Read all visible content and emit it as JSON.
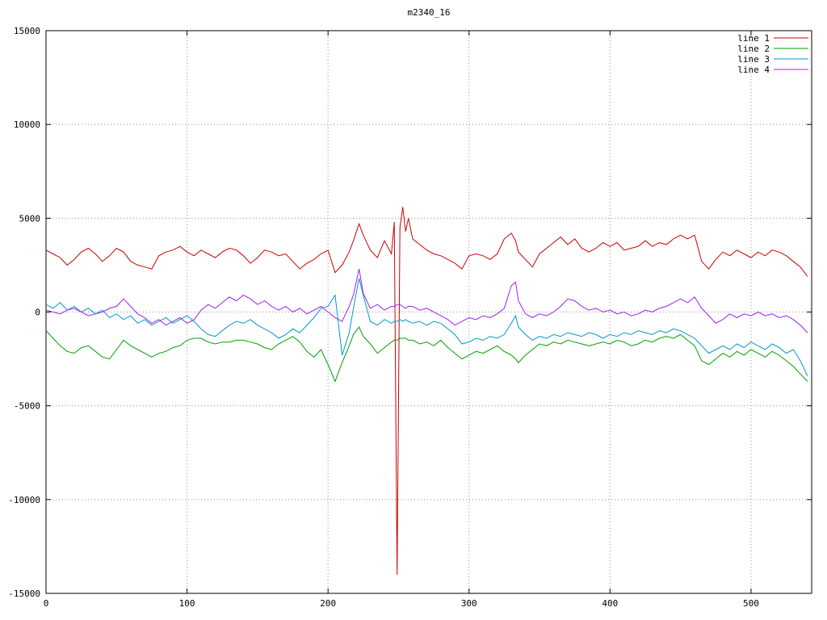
{
  "chart_data": {
    "type": "line",
    "title": "m2340_16",
    "xlabel": "",
    "ylabel": "",
    "xlim": [
      0,
      543
    ],
    "ylim": [
      -15000,
      15000
    ],
    "x_ticks": [
      0,
      100,
      200,
      300,
      400,
      500
    ],
    "y_ticks": [
      -15000,
      -10000,
      -5000,
      0,
      5000,
      10000,
      15000
    ],
    "grid": true,
    "grid_style": "dotted",
    "legend_position": "top-right",
    "colors": {
      "border": "#000000",
      "grid": "#909090",
      "text": "#000000",
      "background": "#ffffff"
    },
    "x": [
      0,
      5,
      10,
      15,
      20,
      25,
      30,
      35,
      40,
      45,
      50,
      55,
      60,
      65,
      70,
      75,
      80,
      85,
      90,
      95,
      100,
      105,
      110,
      115,
      120,
      125,
      130,
      135,
      140,
      145,
      150,
      155,
      160,
      165,
      170,
      175,
      180,
      185,
      190,
      195,
      200,
      205,
      210,
      215,
      218,
      222,
      225,
      230,
      235,
      240,
      245,
      247,
      249,
      251,
      253,
      255,
      257,
      260,
      265,
      270,
      275,
      280,
      285,
      290,
      295,
      300,
      305,
      310,
      315,
      320,
      325,
      330,
      333,
      335,
      340,
      345,
      350,
      355,
      360,
      365,
      370,
      375,
      380,
      385,
      390,
      395,
      400,
      405,
      410,
      415,
      420,
      425,
      430,
      435,
      440,
      445,
      450,
      455,
      460,
      465,
      470,
      475,
      480,
      485,
      490,
      495,
      500,
      505,
      510,
      515,
      520,
      525,
      530,
      535,
      540
    ],
    "series": [
      {
        "name": "line 1",
        "color": "#cc0000",
        "values": [
          3300,
          3100,
          2900,
          2500,
          2800,
          3200,
          3400,
          3100,
          2700,
          3000,
          3400,
          3200,
          2700,
          2500,
          2400,
          2300,
          3000,
          3200,
          3300,
          3500,
          3200,
          3000,
          3300,
          3100,
          2900,
          3200,
          3400,
          3300,
          3000,
          2600,
          2900,
          3300,
          3200,
          3000,
          3100,
          2700,
          2300,
          2600,
          2800,
          3100,
          3300,
          2100,
          2500,
          3200,
          3800,
          4700,
          4100,
          3300,
          2900,
          3800,
          3100,
          4800,
          -14000,
          4500,
          5600,
          4300,
          5000,
          3900,
          3600,
          3300,
          3100,
          3000,
          2800,
          2600,
          2300,
          3000,
          3100,
          3000,
          2800,
          3100,
          3900,
          4200,
          3800,
          3200,
          2800,
          2400,
          3100,
          3400,
          3700,
          4000,
          3600,
          3900,
          3400,
          3200,
          3400,
          3700,
          3500,
          3700,
          3300,
          3400,
          3500,
          3800,
          3500,
          3700,
          3600,
          3900,
          4100,
          3900,
          4100,
          2700,
          2300,
          2800,
          3200,
          3000,
          3300,
          3100,
          2900,
          3200,
          3000,
          3300,
          3200,
          3000,
          2700,
          2400,
          1900
        ]
      },
      {
        "name": "line 2",
        "color": "#00a000",
        "values": [
          -1000,
          -1400,
          -1800,
          -2100,
          -2200,
          -1900,
          -1800,
          -2100,
          -2400,
          -2500,
          -2000,
          -1500,
          -1800,
          -2000,
          -2200,
          -2400,
          -2200,
          -2100,
          -1900,
          -1800,
          -1500,
          -1400,
          -1400,
          -1600,
          -1700,
          -1600,
          -1600,
          -1500,
          -1500,
          -1600,
          -1700,
          -1900,
          -2000,
          -1700,
          -1500,
          -1300,
          -1600,
          -2100,
          -2400,
          -2000,
          -2800,
          -3700,
          -2700,
          -1800,
          -1200,
          -800,
          -1300,
          -1700,
          -2200,
          -1900,
          -1600,
          -1500,
          -1500,
          -1400,
          -1400,
          -1400,
          -1500,
          -1500,
          -1700,
          -1600,
          -1800,
          -1500,
          -1900,
          -2200,
          -2500,
          -2300,
          -2100,
          -2200,
          -2000,
          -1800,
          -2100,
          -2300,
          -2500,
          -2700,
          -2300,
          -2000,
          -1700,
          -1800,
          -1600,
          -1700,
          -1500,
          -1600,
          -1700,
          -1800,
          -1700,
          -1600,
          -1700,
          -1500,
          -1600,
          -1800,
          -1700,
          -1500,
          -1600,
          -1400,
          -1300,
          -1400,
          -1200,
          -1500,
          -1800,
          -2600,
          -2800,
          -2500,
          -2200,
          -2400,
          -2100,
          -2300,
          -2000,
          -2200,
          -2400,
          -2100,
          -2300,
          -2600,
          -2900,
          -3300,
          -3700
        ]
      },
      {
        "name": "line 3",
        "color": "#0099cc",
        "values": [
          400,
          200,
          500,
          100,
          300,
          0,
          200,
          -100,
          100,
          -300,
          -100,
          -400,
          -200,
          -600,
          -400,
          -700,
          -500,
          -300,
          -600,
          -400,
          -200,
          -500,
          -900,
          -1200,
          -1300,
          -1000,
          -700,
          -500,
          -600,
          -400,
          -700,
          -900,
          -1100,
          -1400,
          -1200,
          -900,
          -1100,
          -700,
          -300,
          200,
          300,
          900,
          -2300,
          -1100,
          200,
          1800,
          900,
          -500,
          -700,
          -400,
          -600,
          -500,
          -500,
          -400,
          -500,
          -400,
          -500,
          -600,
          -500,
          -700,
          -500,
          -600,
          -900,
          -1200,
          -1700,
          -1600,
          -1400,
          -1500,
          -1300,
          -1400,
          -1200,
          -600,
          -200,
          -800,
          -1200,
          -1500,
          -1300,
          -1400,
          -1200,
          -1300,
          -1100,
          -1200,
          -1300,
          -1100,
          -1200,
          -1400,
          -1200,
          -1300,
          -1100,
          -1200,
          -1000,
          -1100,
          -1200,
          -1000,
          -1100,
          -900,
          -1000,
          -1200,
          -1400,
          -1800,
          -2200,
          -2000,
          -1800,
          -2000,
          -1700,
          -1900,
          -1600,
          -1800,
          -2000,
          -1700,
          -1900,
          -2200,
          -2000,
          -2600,
          -3400
        ]
      },
      {
        "name": "line 4",
        "color": "#a020f0",
        "values": [
          100,
          0,
          -100,
          100,
          200,
          0,
          -200,
          -100,
          0,
          200,
          300,
          700,
          300,
          -100,
          -300,
          -600,
          -400,
          -700,
          -500,
          -300,
          -600,
          -400,
          100,
          400,
          200,
          500,
          800,
          600,
          900,
          700,
          400,
          600,
          300,
          100,
          300,
          0,
          200,
          -100,
          100,
          300,
          0,
          -300,
          -500,
          300,
          900,
          2300,
          1000,
          200,
          400,
          100,
          300,
          300,
          400,
          400,
          300,
          200,
          300,
          300,
          100,
          200,
          0,
          -200,
          -400,
          -700,
          -500,
          -300,
          -400,
          -200,
          -300,
          -100,
          200,
          1400,
          1600,
          600,
          -100,
          -300,
          -100,
          -200,
          0,
          300,
          700,
          600,
          300,
          100,
          200,
          0,
          100,
          -100,
          0,
          -200,
          -100,
          100,
          0,
          200,
          300,
          500,
          700,
          500,
          800,
          200,
          -200,
          -600,
          -400,
          -100,
          -300,
          -100,
          -200,
          0,
          -200,
          -100,
          -300,
          -200,
          -400,
          -700,
          -1100
        ]
      }
    ]
  }
}
